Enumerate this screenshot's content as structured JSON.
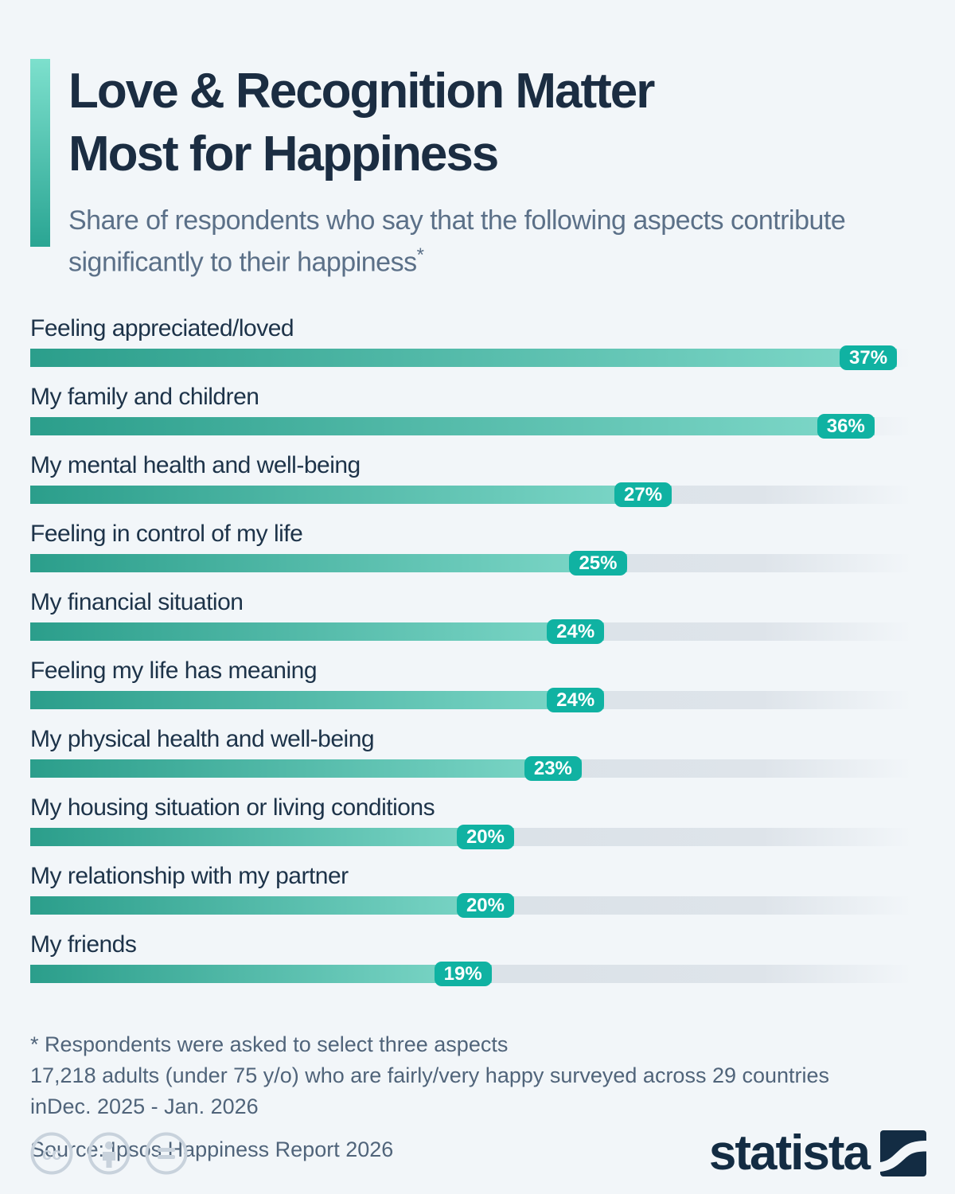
{
  "header": {
    "title_line1": "Love & Recognition Matter",
    "title_line2": "Most for Happiness",
    "subtitle": "Share of respondents who say that the following aspects contribute significantly to their happiness",
    "footnote_marker": "*"
  },
  "chart_data": {
    "type": "bar",
    "orientation": "horizontal",
    "unit": "%",
    "categories": [
      "Feeling appreciated/loved",
      "My family and children",
      "My mental health and well-being",
      "Feeling in control of my life",
      "My financial situation",
      "Feeling my life has meaning",
      "My physical health and well-being",
      "My housing situation or living conditions",
      "My relationship with my partner",
      "My friends"
    ],
    "values": [
      37,
      36,
      27,
      25,
      24,
      24,
      23,
      20,
      20,
      19
    ],
    "value_labels": [
      "37%",
      "36%",
      "27%",
      "25%",
      "24%",
      "24%",
      "23%",
      "20%",
      "20%",
      "19%"
    ],
    "xlim": [
      0,
      38
    ],
    "grid": false,
    "legend": false
  },
  "footnotes": {
    "line1": "* Respondents were asked to select three aspects",
    "line2": "17,218 adults (under 75 y/o) who are fairly/very happy surveyed across 29 countries",
    "line3": "inDec. 2025 - Jan. 2026",
    "source": "Source: Ipsos Happiness Report 2026"
  },
  "footer": {
    "license_icons": [
      "creative-commons",
      "attribution",
      "no-derivatives"
    ],
    "brand_name": "statista"
  },
  "colors": {
    "bg": "#f2f6f9",
    "title": "#1b2d42",
    "subtitle": "#5b7088",
    "label": "#1d3349",
    "bar_start": "#2b9e8b",
    "bar_end": "#80d9ca",
    "badge": "#10b2a2",
    "accent_light": "#7de0cd",
    "accent_dark": "#2aa593",
    "footnote": "#50647a",
    "cc_icon": "#c8d2dc",
    "brand": "#132c43"
  }
}
